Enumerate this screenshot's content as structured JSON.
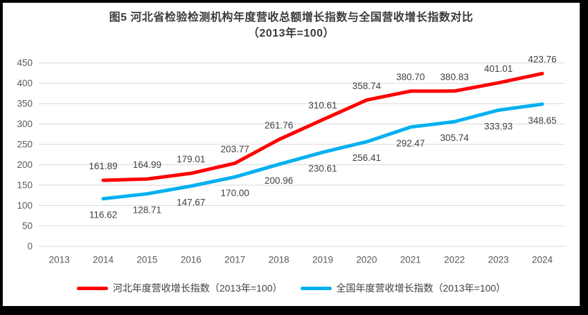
{
  "title": {
    "line1": "图5  河北省检验检测机构年度营收总额增长指数与全国营收增长指数对比",
    "line2": "（2013年=100）"
  },
  "chart_data": {
    "type": "line",
    "categories": [
      "2013",
      "2014",
      "2015",
      "2016",
      "2017",
      "2018",
      "2019",
      "2020",
      "2021",
      "2022",
      "2023",
      "2024"
    ],
    "series": [
      {
        "id": "hebei",
        "name": "河北年度营收增长指数（2013年=100）",
        "color": "#FF0000",
        "label_position": "above",
        "values": [
          null,
          161.89,
          164.99,
          179.01,
          203.77,
          261.76,
          310.61,
          358.74,
          380.7,
          380.83,
          401.01,
          423.76
        ]
      },
      {
        "id": "national",
        "name": "全国年度营收增长指数（2013年=100）",
        "color": "#00B0F0",
        "label_position": "below",
        "values": [
          null,
          116.62,
          128.71,
          147.67,
          170.0,
          200.96,
          230.61,
          256.41,
          292.47,
          305.74,
          333.93,
          348.65
        ]
      }
    ],
    "yticks": [
      0,
      50,
      100,
      150,
      200,
      250,
      300,
      350,
      400,
      450
    ],
    "ylim": [
      0,
      450
    ],
    "grid": true,
    "legend_position": "bottom",
    "colors": {
      "gridline": "#D9D9D9",
      "axis_text": "#595959",
      "data_label_text": "#404040",
      "title_text": "#3b3b3b",
      "frame_border": "#000000"
    }
  },
  "legend": {
    "items": [
      {
        "label": "河北年度营收增长指数（2013年=100）",
        "color": "#FF0000"
      },
      {
        "label": "全国年度营收增长指数（2013年=100）",
        "color": "#00B0F0"
      }
    ]
  }
}
